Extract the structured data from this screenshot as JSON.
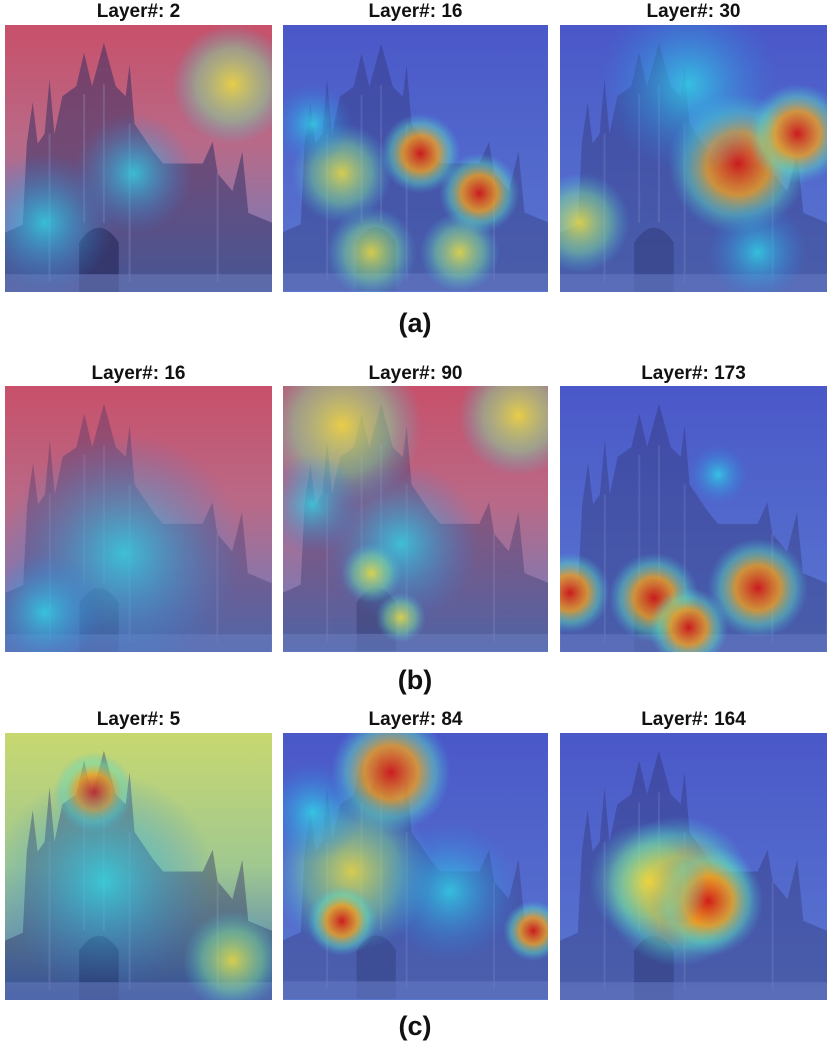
{
  "rows": [
    {
      "caption": "(a)",
      "panels": [
        {
          "title": "Layer#: 2"
        },
        {
          "title": "Layer#: 16"
        },
        {
          "title": "Layer#: 30"
        }
      ]
    },
    {
      "caption": "(b)",
      "panels": [
        {
          "title": "Layer#: 16"
        },
        {
          "title": "Layer#: 90"
        },
        {
          "title": "Layer#: 173"
        }
      ]
    },
    {
      "caption": "(c)",
      "panels": [
        {
          "title": "Layer#: 5"
        },
        {
          "title": "Layer#: 84"
        },
        {
          "title": "Layer#: 164"
        }
      ]
    }
  ]
}
